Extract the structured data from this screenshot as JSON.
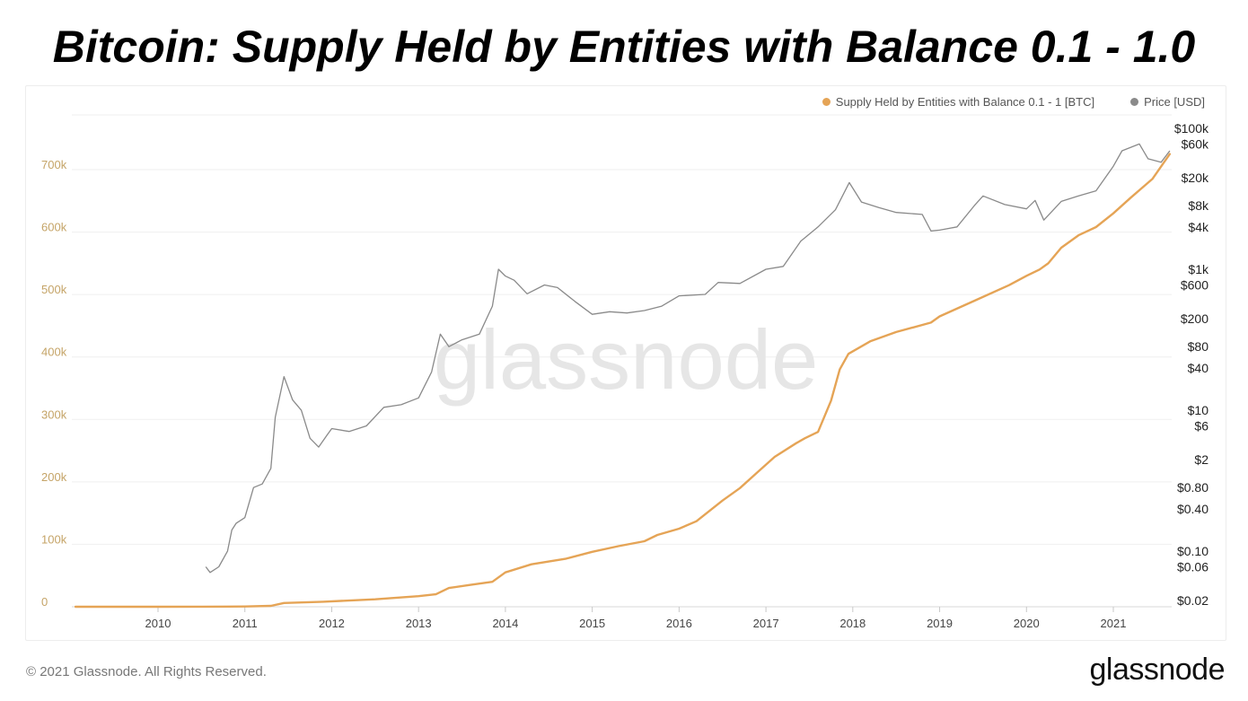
{
  "title": "Bitcoin: Supply Held by Entities with Balance 0.1 - 1.0",
  "footer": {
    "copyright": "© 2021 Glassnode. All Rights Reserved.",
    "logo": "glassnode"
  },
  "chart_data": {
    "type": "line",
    "title": "Bitcoin: Supply Held by Entities with Balance 0.1 - 1.0",
    "watermark": "glassnode",
    "grid": true,
    "legend_position": "top-right",
    "x_ticks": [
      "2010",
      "2011",
      "2012",
      "2013",
      "2014",
      "2015",
      "2016",
      "2017",
      "2018",
      "2019",
      "2020",
      "2021"
    ],
    "x_range": [
      2009.05,
      2021.65
    ],
    "y_left": {
      "ticks": [
        0,
        100000,
        200000,
        300000,
        400000,
        500000,
        600000,
        700000
      ],
      "tick_labels": [
        "0",
        "100k",
        "200k",
        "300k",
        "400k",
        "500k",
        "600k",
        "700k"
      ],
      "range": [
        0,
        780000
      ],
      "color": "#c5a467"
    },
    "y_right": {
      "scale": "log",
      "ticks": [
        0.02,
        0.06,
        0.1,
        0.4,
        0.8,
        2,
        6,
        10,
        40,
        80,
        200,
        600,
        1000,
        4000,
        8000,
        20000,
        60000,
        100000
      ],
      "tick_labels": [
        "$0.02",
        "$0.06",
        "$0.10",
        "$0.40",
        "$0.80",
        "$2",
        "$6",
        "$10",
        "$40",
        "$80",
        "$200",
        "$600",
        "$1k",
        "$4k",
        "$8k",
        "$20k",
        "$60k",
        "$100k"
      ],
      "range": [
        0.02,
        100000
      ]
    },
    "series": [
      {
        "name": "Supply Held by Entities with Balance 0.1 - 1 [BTC]",
        "axis": "left",
        "color": "#e5a456",
        "points": [
          [
            2009.05,
            0
          ],
          [
            2010.0,
            0
          ],
          [
            2010.5,
            100
          ],
          [
            2011.0,
            500
          ],
          [
            2011.3,
            1500
          ],
          [
            2011.45,
            6000
          ],
          [
            2011.9,
            8000
          ],
          [
            2012.5,
            12000
          ],
          [
            2013.0,
            17000
          ],
          [
            2013.2,
            20000
          ],
          [
            2013.35,
            30000
          ],
          [
            2013.6,
            35000
          ],
          [
            2013.85,
            40000
          ],
          [
            2014.0,
            55000
          ],
          [
            2014.3,
            68000
          ],
          [
            2014.7,
            77000
          ],
          [
            2015.0,
            88000
          ],
          [
            2015.3,
            97000
          ],
          [
            2015.6,
            105000
          ],
          [
            2015.75,
            115000
          ],
          [
            2016.0,
            125000
          ],
          [
            2016.2,
            137000
          ],
          [
            2016.5,
            170000
          ],
          [
            2016.7,
            190000
          ],
          [
            2016.9,
            215000
          ],
          [
            2017.1,
            240000
          ],
          [
            2017.35,
            262000
          ],
          [
            2017.45,
            270000
          ],
          [
            2017.6,
            280000
          ],
          [
            2017.75,
            330000
          ],
          [
            2017.85,
            380000
          ],
          [
            2017.95,
            405000
          ],
          [
            2018.2,
            425000
          ],
          [
            2018.5,
            440000
          ],
          [
            2018.9,
            455000
          ],
          [
            2019.0,
            465000
          ],
          [
            2019.4,
            490000
          ],
          [
            2019.8,
            515000
          ],
          [
            2020.0,
            530000
          ],
          [
            2020.15,
            540000
          ],
          [
            2020.25,
            550000
          ],
          [
            2020.4,
            575000
          ],
          [
            2020.6,
            595000
          ],
          [
            2020.8,
            608000
          ],
          [
            2021.0,
            630000
          ],
          [
            2021.2,
            655000
          ],
          [
            2021.45,
            685000
          ],
          [
            2021.65,
            725000
          ]
        ]
      },
      {
        "name": "Price [USD]",
        "axis": "right",
        "color": "#8a8a8a",
        "points": [
          [
            2010.55,
            0.06
          ],
          [
            2010.6,
            0.05
          ],
          [
            2010.7,
            0.06
          ],
          [
            2010.8,
            0.1
          ],
          [
            2010.85,
            0.2
          ],
          [
            2010.9,
            0.25
          ],
          [
            2011.0,
            0.3
          ],
          [
            2011.1,
            0.8
          ],
          [
            2011.2,
            0.9
          ],
          [
            2011.3,
            1.5
          ],
          [
            2011.35,
            8
          ],
          [
            2011.45,
            30
          ],
          [
            2011.55,
            14
          ],
          [
            2011.65,
            10
          ],
          [
            2011.75,
            4
          ],
          [
            2011.85,
            3
          ],
          [
            2011.95,
            4.5
          ],
          [
            2012.0,
            5.5
          ],
          [
            2012.2,
            5
          ],
          [
            2012.4,
            6
          ],
          [
            2012.6,
            11
          ],
          [
            2012.8,
            12
          ],
          [
            2013.0,
            15
          ],
          [
            2013.15,
            35
          ],
          [
            2013.25,
            120
          ],
          [
            2013.35,
            80
          ],
          [
            2013.5,
            100
          ],
          [
            2013.7,
            120
          ],
          [
            2013.85,
            300
          ],
          [
            2013.92,
            1000
          ],
          [
            2014.0,
            800
          ],
          [
            2014.1,
            700
          ],
          [
            2014.25,
            450
          ],
          [
            2014.45,
            600
          ],
          [
            2014.6,
            550
          ],
          [
            2014.8,
            350
          ],
          [
            2015.0,
            230
          ],
          [
            2015.2,
            250
          ],
          [
            2015.4,
            240
          ],
          [
            2015.6,
            260
          ],
          [
            2015.8,
            300
          ],
          [
            2016.0,
            420
          ],
          [
            2016.3,
            440
          ],
          [
            2016.45,
            650
          ],
          [
            2016.7,
            630
          ],
          [
            2017.0,
            1000
          ],
          [
            2017.2,
            1100
          ],
          [
            2017.4,
            2500
          ],
          [
            2017.6,
            4000
          ],
          [
            2017.8,
            7000
          ],
          [
            2017.96,
            17000
          ],
          [
            2018.1,
            9000
          ],
          [
            2018.3,
            7500
          ],
          [
            2018.5,
            6400
          ],
          [
            2018.8,
            6000
          ],
          [
            2018.9,
            3500
          ],
          [
            2019.0,
            3600
          ],
          [
            2019.2,
            4000
          ],
          [
            2019.4,
            8000
          ],
          [
            2019.5,
            11000
          ],
          [
            2019.75,
            8300
          ],
          [
            2020.0,
            7200
          ],
          [
            2020.1,
            9500
          ],
          [
            2020.2,
            5000
          ],
          [
            2020.4,
            9200
          ],
          [
            2020.6,
            11000
          ],
          [
            2020.8,
            13000
          ],
          [
            2021.0,
            29000
          ],
          [
            2021.1,
            48000
          ],
          [
            2021.3,
            60000
          ],
          [
            2021.4,
            37000
          ],
          [
            2021.55,
            33000
          ],
          [
            2021.65,
            48000
          ]
        ]
      }
    ]
  }
}
